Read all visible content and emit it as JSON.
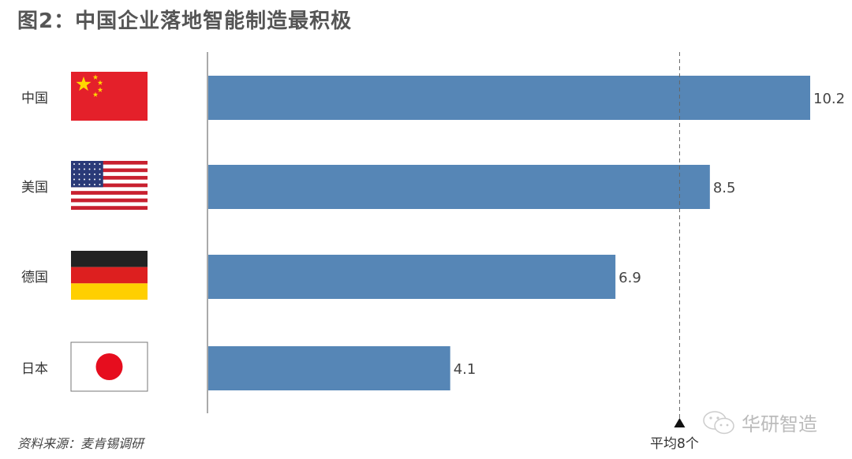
{
  "chart_data": {
    "type": "bar",
    "orientation": "horizontal",
    "title": "图2：中国企业落地智能制造最积极",
    "categories": [
      "中国",
      "美国",
      "德国",
      "日本"
    ],
    "values": [
      10.2,
      8.5,
      6.9,
      4.1
    ],
    "xlim": [
      0,
      10.2
    ],
    "grid": false,
    "bar_color": "#5686b6",
    "reference_line": {
      "value": 8,
      "label": "平均8个",
      "style": "dashed"
    },
    "flags": [
      "china-flag",
      "usa-flag",
      "germany-flag",
      "japan-flag"
    ]
  },
  "source": "资料来源：麦肯锡调研",
  "watermark": "华研智造"
}
